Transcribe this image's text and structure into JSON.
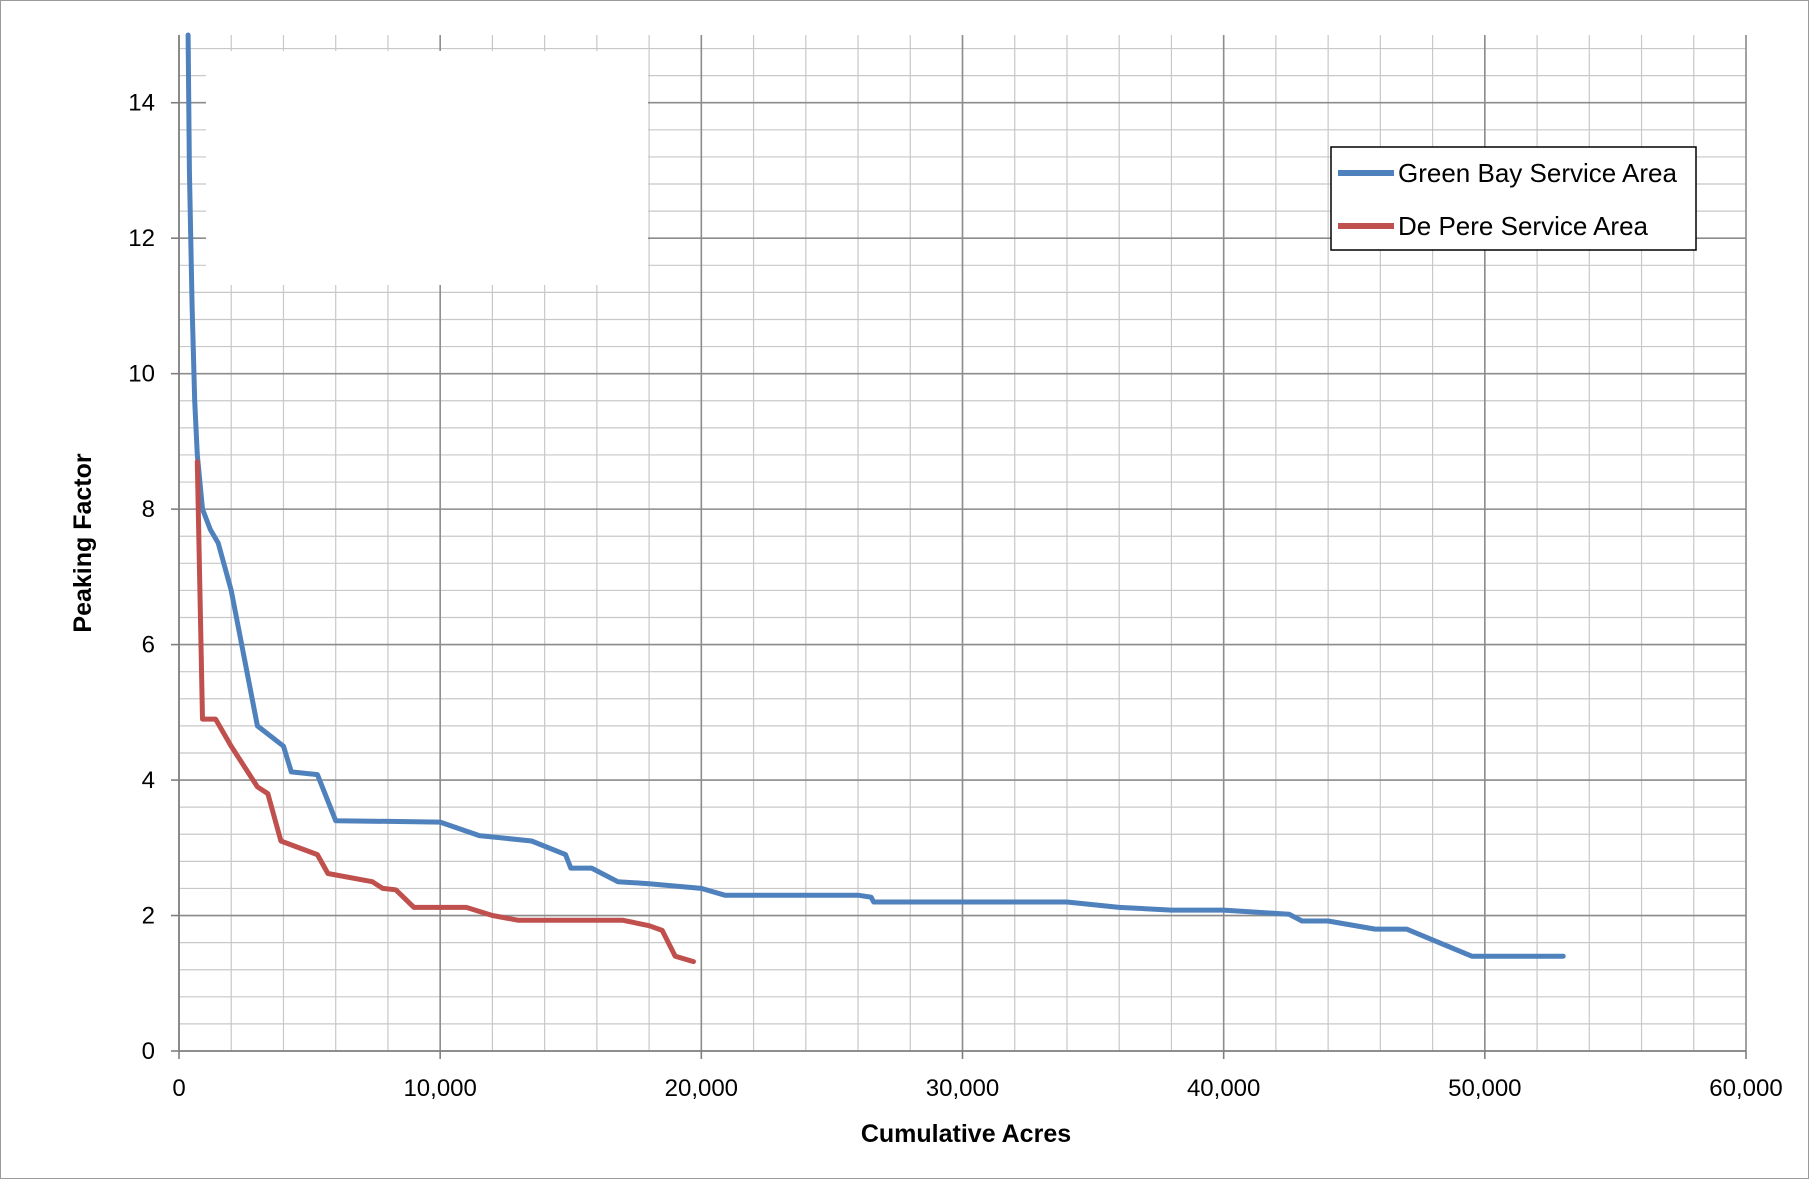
{
  "chart_data": {
    "type": "line",
    "title": "",
    "xlabel": "Cumulative Acres",
    "ylabel": "Peaking Factor",
    "xlim": [
      0,
      60000
    ],
    "ylim": [
      0,
      15
    ],
    "x_major_ticks": [
      0,
      10000,
      20000,
      30000,
      40000,
      50000,
      60000
    ],
    "x_tick_labels": [
      "0",
      "10,000",
      "20,000",
      "30,000",
      "40,000",
      "50,000",
      "60,000"
    ],
    "x_minor_step": 2000,
    "y_major_ticks": [
      0,
      2,
      4,
      6,
      8,
      10,
      12,
      14
    ],
    "y_tick_labels": [
      "0",
      "2",
      "4",
      "6",
      "8",
      "10",
      "12",
      "14"
    ],
    "y_minor_step": 0.4,
    "grid": true,
    "legend_position": "top-right",
    "series": [
      {
        "name": "Green Bay Service Area",
        "color": "#4f81bd",
        "points": [
          [
            350,
            15.0
          ],
          [
            400,
            13.0
          ],
          [
            500,
            11.0
          ],
          [
            600,
            9.6
          ],
          [
            700,
            8.8
          ],
          [
            900,
            8.0
          ],
          [
            1200,
            7.7
          ],
          [
            1500,
            7.5
          ],
          [
            2000,
            6.8
          ],
          [
            2500,
            5.8
          ],
          [
            3000,
            4.8
          ],
          [
            4000,
            4.5
          ],
          [
            4300,
            4.12
          ],
          [
            5300,
            4.08
          ],
          [
            6000,
            3.4
          ],
          [
            10000,
            3.38
          ],
          [
            11500,
            3.18
          ],
          [
            13500,
            3.1
          ],
          [
            14800,
            2.9
          ],
          [
            15000,
            2.7
          ],
          [
            15800,
            2.7
          ],
          [
            16800,
            2.5
          ],
          [
            18000,
            2.47
          ],
          [
            20000,
            2.4
          ],
          [
            20900,
            2.3
          ],
          [
            26000,
            2.3
          ],
          [
            26500,
            2.27
          ],
          [
            26600,
            2.2
          ],
          [
            34000,
            2.2
          ],
          [
            36000,
            2.12
          ],
          [
            38000,
            2.08
          ],
          [
            40000,
            2.08
          ],
          [
            42500,
            2.02
          ],
          [
            43000,
            1.92
          ],
          [
            44000,
            1.92
          ],
          [
            45800,
            1.8
          ],
          [
            47000,
            1.8
          ],
          [
            49500,
            1.4
          ],
          [
            53000,
            1.4
          ]
        ]
      },
      {
        "name": "De Pere Service Area",
        "color": "#c0504d",
        "points": [
          [
            700,
            8.7
          ],
          [
            900,
            4.9
          ],
          [
            1400,
            4.9
          ],
          [
            2000,
            4.5
          ],
          [
            3000,
            3.9
          ],
          [
            3400,
            3.8
          ],
          [
            3900,
            3.1
          ],
          [
            5300,
            2.9
          ],
          [
            5700,
            2.62
          ],
          [
            7400,
            2.5
          ],
          [
            7800,
            2.4
          ],
          [
            8300,
            2.38
          ],
          [
            9000,
            2.12
          ],
          [
            11000,
            2.12
          ],
          [
            12000,
            2.0
          ],
          [
            13000,
            1.93
          ],
          [
            17000,
            1.93
          ],
          [
            18000,
            1.85
          ],
          [
            18500,
            1.78
          ],
          [
            19000,
            1.4
          ],
          [
            19700,
            1.32
          ]
        ]
      }
    ]
  }
}
